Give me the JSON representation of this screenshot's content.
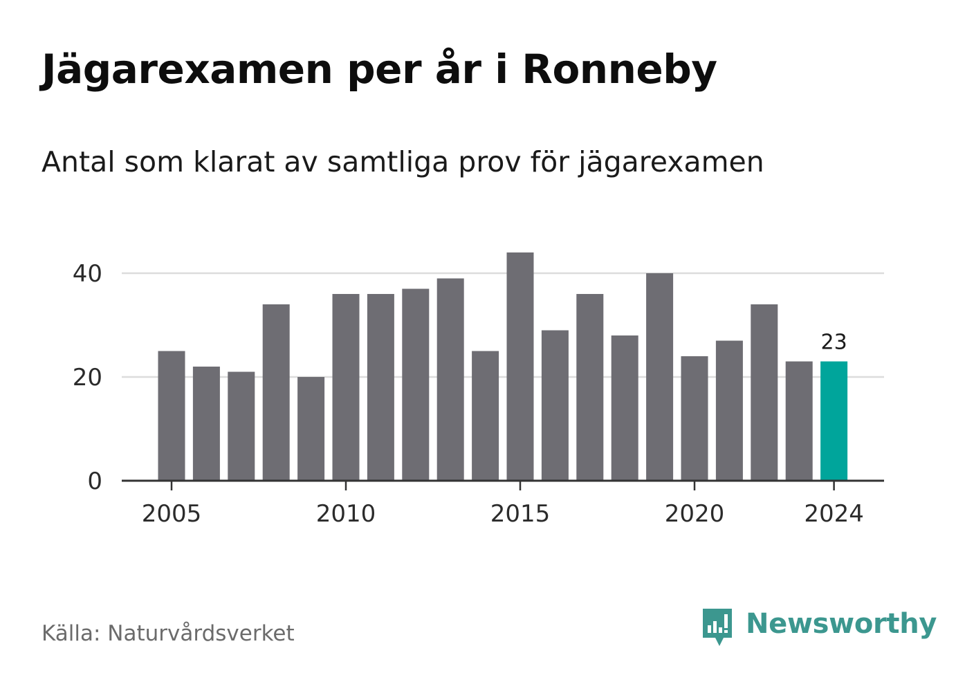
{
  "title": "Jägarexamen per år i Ronneby",
  "subtitle": "Antal som klarat av samtliga prov för jägarexamen",
  "source": "Källa: Naturvårdsverket",
  "brand": {
    "name": "Newsworthy",
    "icon": "newsworthy-logo-icon"
  },
  "colors": {
    "bar": "#6e6d73",
    "highlight": "#00a59b",
    "grid": "#dcdcdc",
    "axis": "#333333",
    "brand": "#3c978f"
  },
  "chart_data": {
    "type": "bar",
    "title": "Jägarexamen per år i Ronneby",
    "subtitle": "Antal som klarat av samtliga prov för jägarexamen",
    "xlabel": "",
    "ylabel": "",
    "categories": [
      2005,
      2006,
      2007,
      2008,
      2009,
      2010,
      2011,
      2012,
      2013,
      2014,
      2015,
      2016,
      2017,
      2018,
      2019,
      2020,
      2021,
      2022,
      2023,
      2024
    ],
    "values": [
      25,
      22,
      21,
      34,
      20,
      36,
      36,
      37,
      39,
      25,
      44,
      29,
      36,
      28,
      40,
      24,
      27,
      34,
      23,
      23
    ],
    "highlight_index": 19,
    "highlight_label": "23",
    "ylim": [
      0,
      46
    ],
    "yticks": [
      0,
      20,
      40
    ],
    "xticks": [
      2005,
      2010,
      2015,
      2020,
      2024
    ],
    "grid": true,
    "legend": "none"
  }
}
